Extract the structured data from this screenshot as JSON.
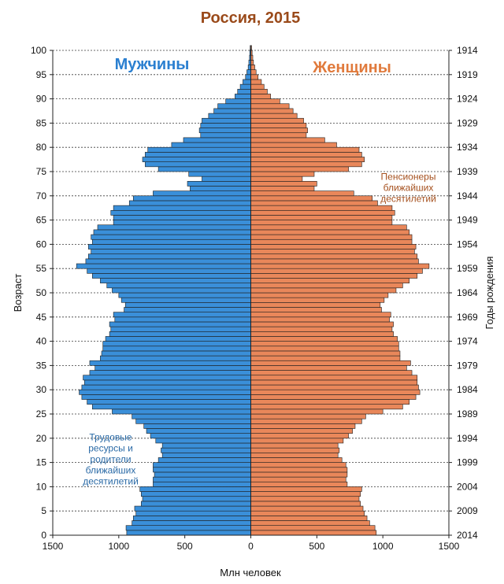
{
  "chart_data": {
    "type": "bar",
    "orientation": "population-pyramid",
    "title": "Россия, 2015",
    "xlabel": "Млн человек",
    "ylabel": "Возраст",
    "y2label": "Годы рождения",
    "xlim": [
      -1500,
      1500
    ],
    "ylim": [
      0,
      100
    ],
    "x_ticks": [
      1500,
      1000,
      500,
      0,
      500,
      1000,
      1500
    ],
    "y_ticks": [
      0,
      5,
      10,
      15,
      20,
      25,
      30,
      35,
      40,
      45,
      50,
      55,
      60,
      65,
      70,
      75,
      80,
      85,
      90,
      95,
      100
    ],
    "y2_ticks": [
      2014,
      2009,
      2004,
      1999,
      1994,
      1989,
      1984,
      1979,
      1974,
      1969,
      1964,
      1959,
      1954,
      1949,
      1944,
      1939,
      1934,
      1929,
      1924,
      1919,
      1914
    ],
    "grid": "horizontal",
    "ages": [
      0,
      1,
      2,
      3,
      4,
      5,
      6,
      7,
      8,
      9,
      10,
      11,
      12,
      13,
      14,
      15,
      16,
      17,
      18,
      19,
      20,
      21,
      22,
      23,
      24,
      25,
      26,
      27,
      28,
      29,
      30,
      31,
      32,
      33,
      34,
      35,
      36,
      37,
      38,
      39,
      40,
      41,
      42,
      43,
      44,
      45,
      46,
      47,
      48,
      49,
      50,
      51,
      52,
      53,
      54,
      55,
      56,
      57,
      58,
      59,
      60,
      61,
      62,
      63,
      64,
      65,
      66,
      67,
      68,
      69,
      70,
      71,
      72,
      73,
      74,
      75,
      76,
      77,
      78,
      79,
      80,
      81,
      82,
      83,
      84,
      85,
      86,
      87,
      88,
      89,
      90,
      91,
      92,
      93,
      94,
      95,
      96,
      97,
      98,
      99,
      100
    ],
    "series": [
      {
        "name": "Мужчины",
        "color": "#3a8fd9",
        "values": [
          940,
          945,
          900,
          890,
          870,
          880,
          830,
          820,
          830,
          840,
          740,
          740,
          730,
          740,
          740,
          700,
          670,
          680,
          670,
          720,
          760,
          790,
          810,
          870,
          900,
          1050,
          1200,
          1240,
          1280,
          1300,
          1280,
          1260,
          1270,
          1220,
          1180,
          1220,
          1140,
          1130,
          1120,
          1120,
          1100,
          1070,
          1060,
          1070,
          1030,
          1040,
          960,
          950,
          980,
          1000,
          1050,
          1090,
          1140,
          1200,
          1240,
          1320,
          1250,
          1230,
          1210,
          1230,
          1200,
          1210,
          1190,
          1160,
          1040,
          1040,
          1060,
          1040,
          920,
          890,
          740,
          460,
          480,
          370,
          470,
          700,
          800,
          820,
          800,
          780,
          600,
          510,
          380,
          390,
          380,
          370,
          320,
          280,
          250,
          190,
          120,
          100,
          80,
          60,
          40,
          30,
          20,
          15,
          10,
          8,
          5
        ]
      },
      {
        "name": "Женщины",
        "color": "#e9875a",
        "values": [
          950,
          940,
          900,
          880,
          860,
          850,
          830,
          820,
          830,
          840,
          730,
          720,
          730,
          730,
          720,
          690,
          660,
          670,
          660,
          700,
          740,
          770,
          790,
          840,
          870,
          1000,
          1150,
          1200,
          1250,
          1280,
          1270,
          1260,
          1260,
          1220,
          1180,
          1210,
          1130,
          1130,
          1120,
          1120,
          1110,
          1080,
          1070,
          1080,
          1050,
          1060,
          990,
          980,
          1010,
          1040,
          1100,
          1150,
          1200,
          1260,
          1300,
          1350,
          1270,
          1260,
          1240,
          1250,
          1220,
          1220,
          1200,
          1180,
          1070,
          1070,
          1090,
          1070,
          960,
          920,
          780,
          480,
          500,
          390,
          480,
          740,
          840,
          860,
          840,
          820,
          650,
          560,
          420,
          430,
          420,
          400,
          350,
          320,
          290,
          220,
          150,
          125,
          100,
          80,
          55,
          40,
          30,
          20,
          15,
          10,
          6
        ]
      }
    ],
    "annotations": [
      {
        "text": [
          "Пенсионеры",
          "ближайших",
          "десятилетий"
        ],
        "color": "#a5501e",
        "side": "right",
        "age": 71
      },
      {
        "text": [
          "Трудовые",
          "ресурсы и",
          "родители",
          "ближайших",
          "десятилетий"
        ],
        "color": "#2a6aa6",
        "side": "left",
        "age": 15
      }
    ]
  }
}
